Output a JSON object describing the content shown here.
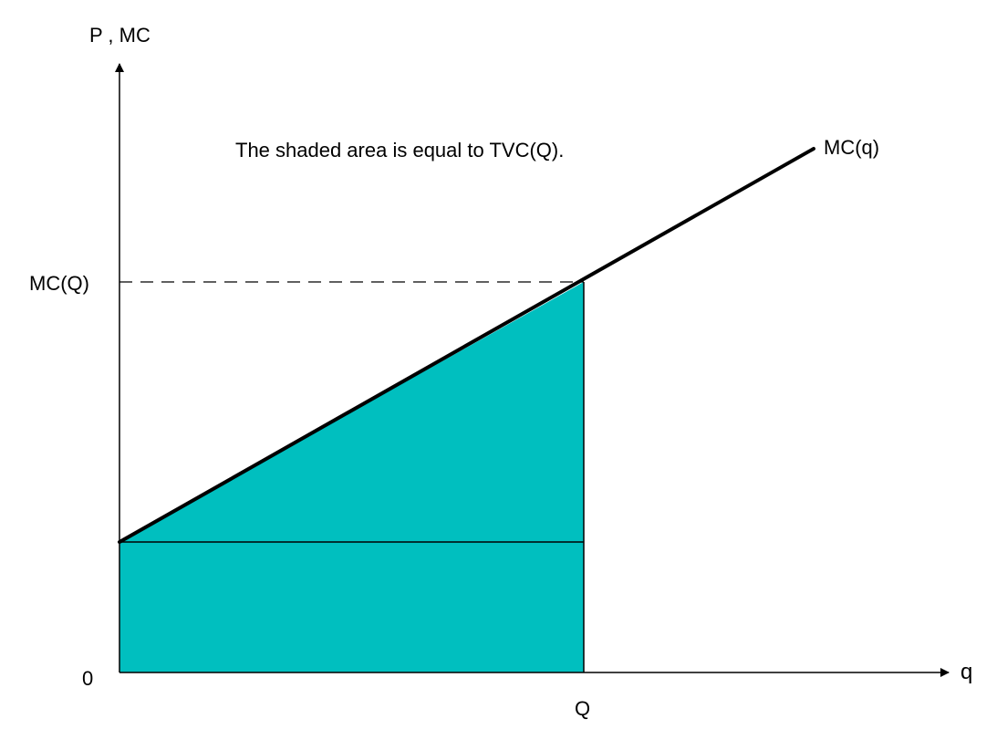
{
  "axes": {
    "y_label": "P , MC",
    "x_label": "q",
    "origin_label": "0"
  },
  "annotation": "The shaded area is equal to TVC(Q).",
  "curve_label": "MC(q)",
  "y_marker_label": "MC(Q)",
  "x_marker_label": "Q",
  "colors": {
    "shaded_area": "#00BFBF",
    "lines": "#000000",
    "background": "#FFFFFF"
  }
}
